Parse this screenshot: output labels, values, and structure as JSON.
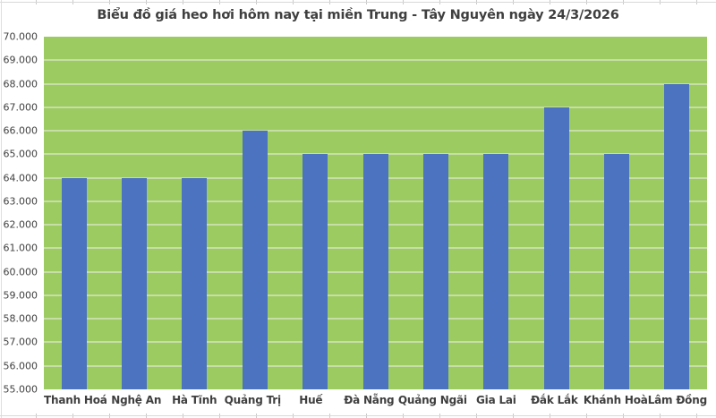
{
  "chart_data": {
    "type": "bar",
    "title": "Biểu đồ giá heo hơi hôm nay tại miền Trung - Tây Nguyên ngày 24/3/2026",
    "categories": [
      "Thanh Hoá",
      "Nghệ An",
      "Hà Tĩnh",
      "Quảng Trị",
      "Huế",
      "Đà Nẵng",
      "Quảng Ngãi",
      "Gia Lai",
      "Đắk Lắk",
      "Khánh Hoà",
      "Lâm Đồng"
    ],
    "values": [
      64000,
      64000,
      64000,
      66000,
      65000,
      65000,
      65000,
      65000,
      67000,
      65000,
      68000
    ],
    "xlabel": "",
    "ylabel": "",
    "ylim": [
      55000,
      70000
    ],
    "ytick_step": 1000,
    "yticks": [
      "70.000",
      "69.000",
      "68.000",
      "67.000",
      "66.000",
      "65.000",
      "64.000",
      "63.000",
      "62.000",
      "61.000",
      "60.000",
      "59.000",
      "58.000",
      "57.000",
      "56.000",
      "55.000"
    ],
    "grid": "horizontal",
    "legend": "none",
    "colors": {
      "bar": "#4C73BF",
      "plot_background": "#9BCB61",
      "gridline": "#C7DEA6",
      "text": "#3F3F3F",
      "page_background": "#FFFFFF"
    }
  }
}
